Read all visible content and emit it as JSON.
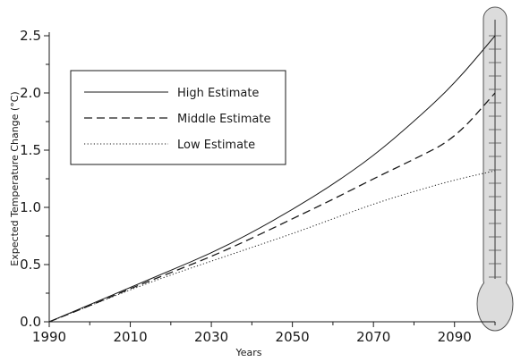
{
  "chart_data": {
    "type": "line",
    "title": "",
    "xlabel": "Years",
    "ylabel": "Expected Temperature Change (°C)",
    "xlim": [
      1990,
      2100
    ],
    "ylim": [
      0,
      2.5
    ],
    "x_ticks": [
      1990,
      2010,
      2030,
      2050,
      2070,
      2090
    ],
    "x_tick_labels": [
      "1990",
      "2010",
      "2030",
      "2050",
      "2070",
      "2090"
    ],
    "y_ticks": [
      0,
      0.5,
      1.0,
      1.5,
      2.0,
      2.5
    ],
    "y_tick_labels": [
      "0.0",
      "0.5",
      "1.0",
      "1.5",
      "2.0",
      "2.5"
    ],
    "grid": false,
    "legend_position": "top-left",
    "x": [
      1990,
      2000,
      2010,
      2020,
      2030,
      2040,
      2050,
      2060,
      2070,
      2080,
      2090,
      2100
    ],
    "series": [
      {
        "name": "High Estimate",
        "style": "solid",
        "values": [
          0.0,
          0.15,
          0.3,
          0.45,
          0.6,
          0.78,
          0.98,
          1.2,
          1.45,
          1.75,
          2.08,
          2.5
        ]
      },
      {
        "name": "Middle Estimate",
        "style": "dashed",
        "values": [
          0.0,
          0.14,
          0.29,
          0.43,
          0.57,
          0.73,
          0.9,
          1.07,
          1.25,
          1.42,
          1.6,
          2.0
        ]
      },
      {
        "name": "Low Estimate",
        "style": "dotted",
        "values": [
          0.0,
          0.14,
          0.28,
          0.41,
          0.53,
          0.65,
          0.77,
          0.9,
          1.03,
          1.14,
          1.24,
          1.32
        ]
      }
    ],
    "colors": {
      "line": "#1a1a1a",
      "thermometer_fill": "#dcdcdc",
      "thermometer_stroke": "#555555"
    },
    "decoration": "thermometer-icon"
  }
}
